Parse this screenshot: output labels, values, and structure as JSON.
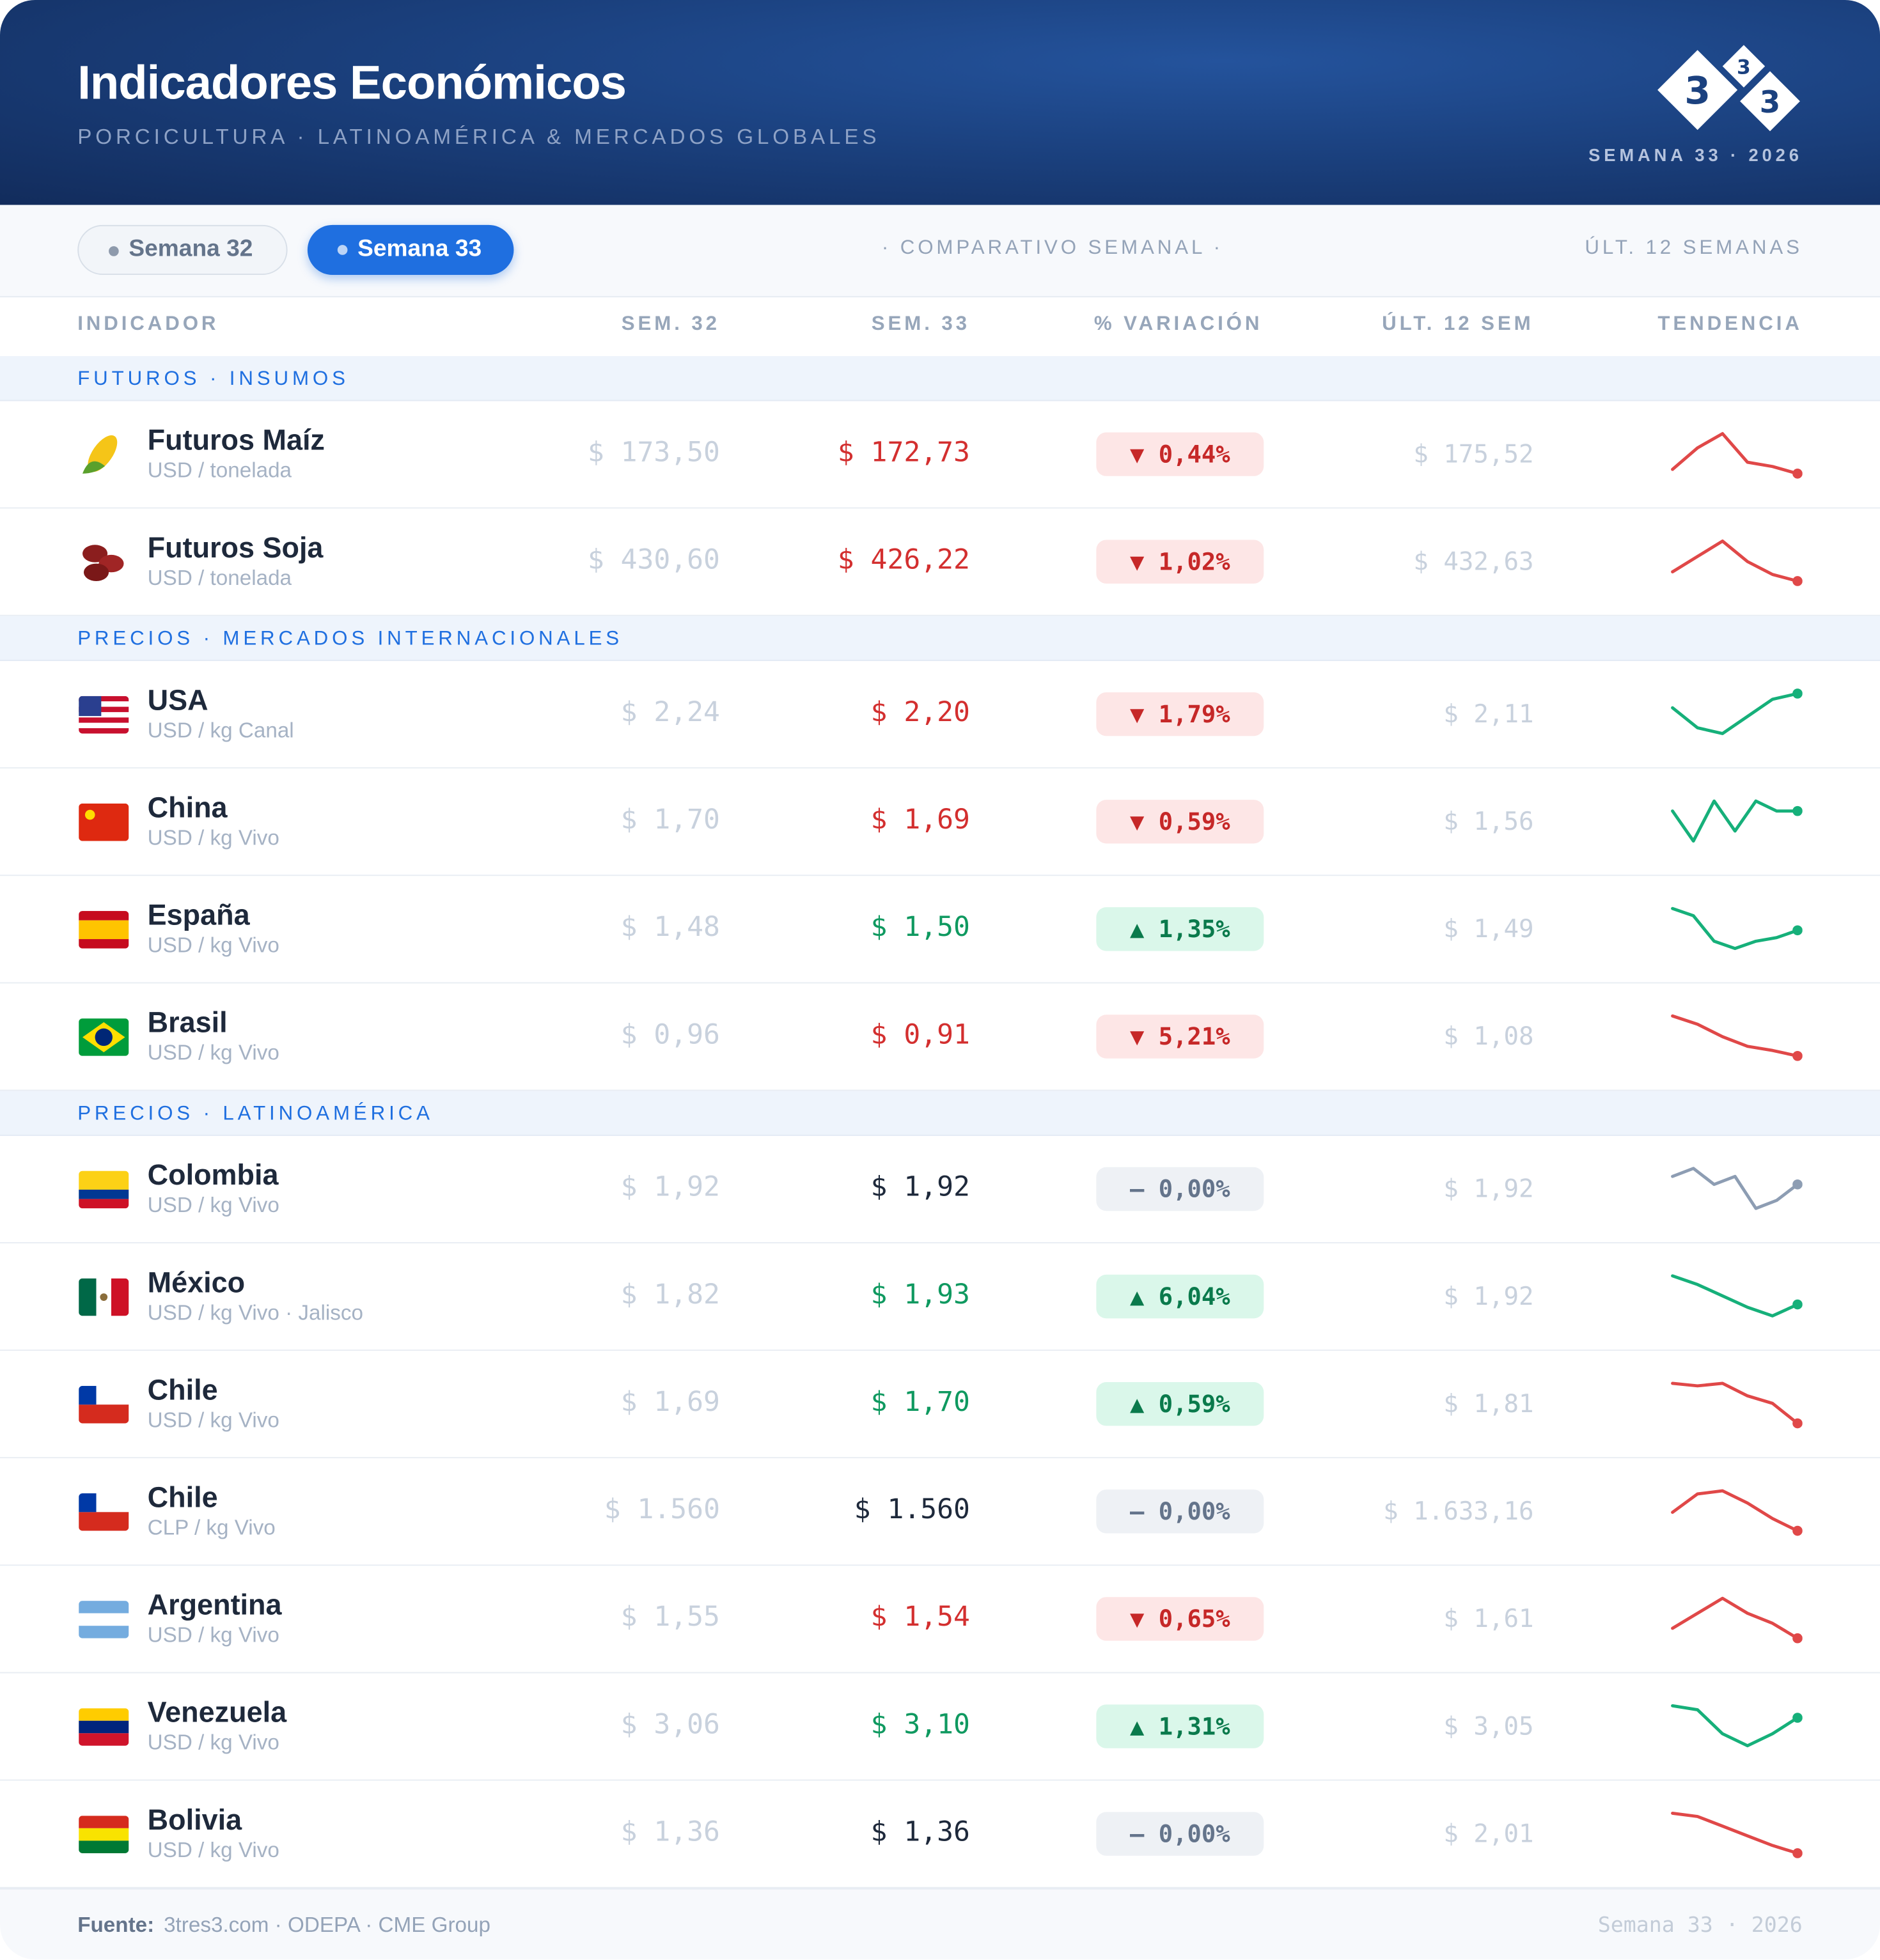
{
  "header": {
    "title": "Indicadores Económicos",
    "subtitle": "PORCICULTURA · LATINOAMÉRICA & MERCADOS GLOBALES",
    "week_label": "SEMANA 33 · 2026",
    "logo": [
      "3",
      "3",
      "3"
    ]
  },
  "toolbar": {
    "tabs": [
      "Semana 32",
      "Semana 33"
    ],
    "active": 1,
    "center": "· COMPARATIVO SEMANAL ·",
    "right": "ÚLT. 12 SEMANAS"
  },
  "table": {
    "columns": [
      "INDICADOR",
      "SEM. 32",
      "SEM. 33",
      "% VARIACIÓN",
      "ÚLT. 12 SEM",
      "TENDENCIA"
    ],
    "sections": [
      {
        "title": "FUTUROS · INSUMOS",
        "rows": [
          {
            "name": "Futuros Maíz",
            "unit": "USD / tonelada",
            "sem32": "$ 173,50",
            "sem33": "$ 172,73",
            "variation": "▼ 0,44%",
            "last12": "$ 175,52",
            "trend_color": "#e04848",
            "trend": [
              173.0,
              174.5,
              175.5,
              173.5,
              173.2,
              172.7
            ]
          },
          {
            "name": "Futuros Soja",
            "unit": "USD / tonelada",
            "sem32": "$ 430,60",
            "sem33": "$ 426,22",
            "variation": "▼ 1,02%",
            "last12": "$ 432,63",
            "trend_color": "#e04848",
            "trend": [
              428,
              431,
              434,
              430,
              427.5,
              426.2
            ]
          }
        ]
      },
      {
        "title": "PRECIOS · MERCADOS INTERNACIONALES",
        "rows": [
          {
            "name": "USA",
            "unit": "USD / kg Canal",
            "sem32": "$ 2,24",
            "sem33": "$ 2,20",
            "variation": "▼ 1,79%",
            "last12": "$ 2,11",
            "trend_color": "#16b07a",
            "trend": [
              2.15,
              2.08,
              2.06,
              2.12,
              2.18,
              2.2
            ]
          },
          {
            "name": "China",
            "unit": "USD / kg Vivo",
            "sem32": "$ 1,70",
            "sem33": "$ 1,69",
            "variation": "▼ 0,59%",
            "last12": "$ 1,56",
            "trend_color": "#16b07a",
            "trend": [
              1.69,
              1.66,
              1.7,
              1.67,
              1.7,
              1.69,
              1.69
            ]
          },
          {
            "name": "España",
            "unit": "USD / kg Vivo",
            "sem32": "$ 1,48",
            "sem33": "$ 1,50",
            "variation": "▲ 1,35%",
            "last12": "$ 1,49",
            "trend_color": "#16b07a",
            "trend": [
              1.56,
              1.54,
              1.47,
              1.45,
              1.47,
              1.48,
              1.5
            ]
          },
          {
            "name": "Brasil",
            "unit": "USD / kg Vivo",
            "sem32": "$ 0,96",
            "sem33": "$ 0,91",
            "variation": "▼ 5,21%",
            "last12": "$ 1,08",
            "trend_color": "#e04848",
            "trend": [
              1.2,
              1.14,
              1.05,
              0.98,
              0.95,
              0.91
            ]
          }
        ]
      },
      {
        "title": "PRECIOS · LATINOAMÉRICA",
        "rows": [
          {
            "name": "Colombia",
            "unit": "USD / kg Vivo",
            "sem32": "$ 1,92",
            "sem33": "$ 1,92",
            "variation": "– 0,00%",
            "last12": "$ 1,92",
            "trend_color": "#8d9db3",
            "trend": [
              1.93,
              1.94,
              1.92,
              1.93,
              1.89,
              1.9,
              1.92
            ]
          },
          {
            "name": "México",
            "unit": "USD / kg Vivo · Jalisco",
            "sem32": "$ 1,82",
            "sem33": "$ 1,93",
            "variation": "▲ 6,04%",
            "last12": "$ 1,92",
            "trend_color": "#16b07a",
            "trend": [
              2.03,
              2.0,
              1.96,
              1.92,
              1.89,
              1.93
            ]
          },
          {
            "name": "Chile",
            "unit": "USD / kg Vivo",
            "sem32": "$ 1,69",
            "sem33": "$ 1,70",
            "variation": "▲ 0,59%",
            "last12": "$ 1,81",
            "trend_color": "#e04848",
            "trend": [
              1.86,
              1.85,
              1.86,
              1.81,
              1.78,
              1.7
            ]
          },
          {
            "name": "Chile",
            "unit": "CLP / kg Vivo",
            "sem32": "$ 1.560",
            "sem33": "$ 1.560",
            "variation": "– 0,00%",
            "last12": "$ 1.633,16",
            "trend_color": "#e04848",
            "trend": [
              1620,
              1680,
              1690,
              1650,
              1600,
              1560
            ]
          },
          {
            "name": "Argentina",
            "unit": "USD / kg Vivo",
            "sem32": "$ 1,55",
            "sem33": "$ 1,54",
            "variation": "▼ 0,65%",
            "last12": "$ 1,61",
            "trend_color": "#e04848",
            "trend": [
              1.58,
              1.64,
              1.7,
              1.64,
              1.6,
              1.54
            ]
          },
          {
            "name": "Venezuela",
            "unit": "USD / kg Vivo",
            "sem32": "$ 3,06",
            "sem33": "$ 3,10",
            "variation": "▲ 1,31%",
            "last12": "$ 3,05",
            "trend_color": "#16b07a",
            "trend": [
              3.13,
              3.12,
              3.06,
              3.03,
              3.06,
              3.1
            ]
          },
          {
            "name": "Bolivia",
            "unit": "USD / kg Vivo",
            "sem32": "$ 1,36",
            "sem33": "$ 1,36",
            "variation": "– 0,00%",
            "last12": "$ 2,01",
            "trend_color": "#e04848",
            "trend": [
              2.6,
              2.5,
              2.2,
              1.9,
              1.6,
              1.36
            ]
          }
        ]
      }
    ]
  },
  "footer": {
    "source_label": "Fuente:",
    "sources": "3tres3.com  ·  ODEPA  ·  CME Group",
    "right": "Semana 33 · 2026"
  }
}
